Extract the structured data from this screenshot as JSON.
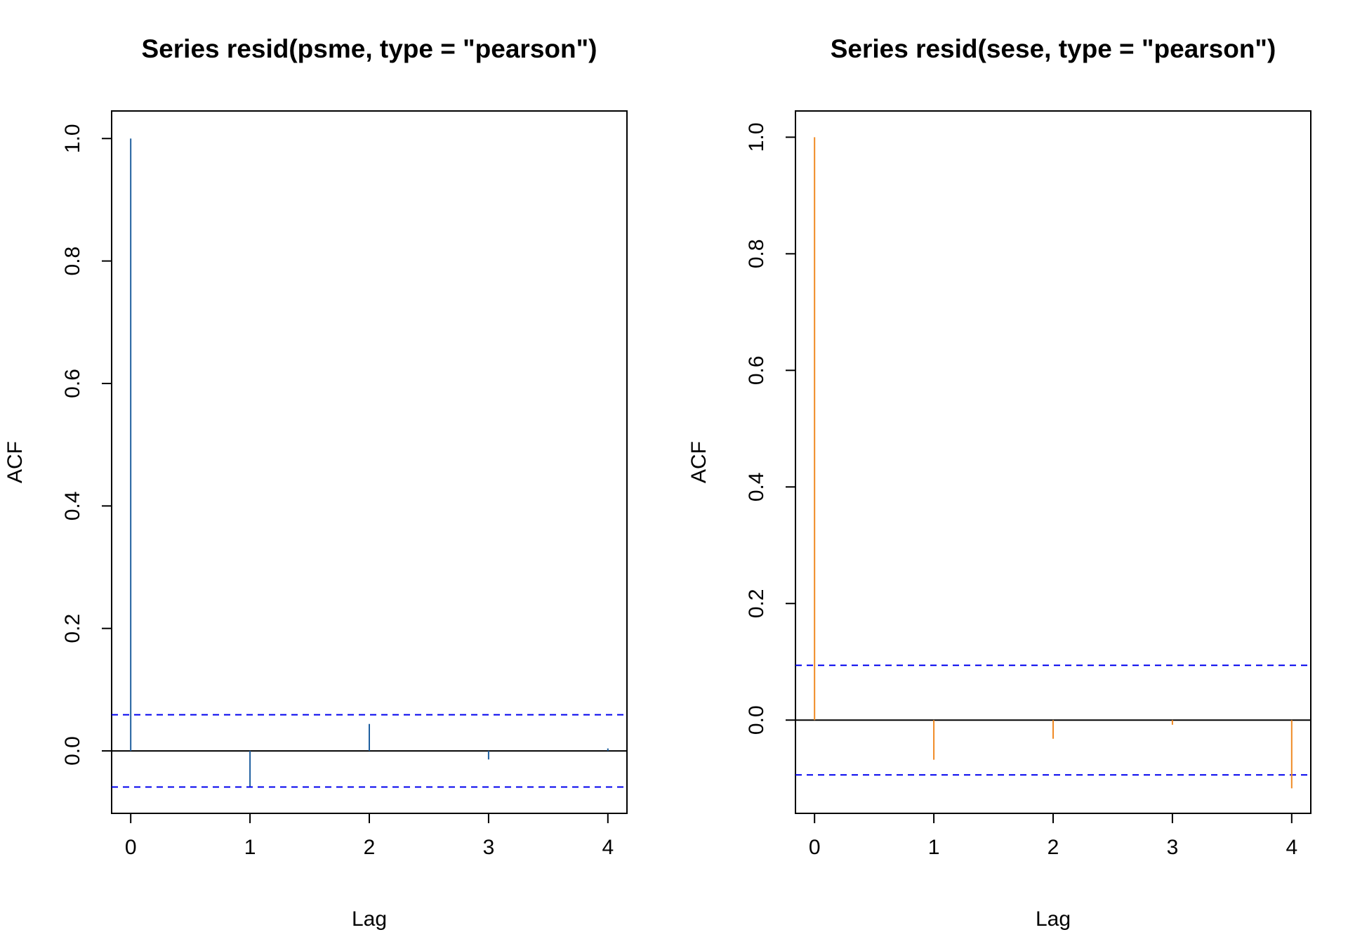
{
  "chart_data": [
    {
      "type": "bar",
      "title": "Series  resid(psme, type = \"pearson\")",
      "xlabel": "Lag",
      "ylabel": "ACF",
      "x": [
        0,
        1,
        2,
        3,
        4
      ],
      "values": [
        1.0,
        -0.058,
        0.044,
        -0.014,
        0.004
      ],
      "xlim": [
        -0.16,
        4.16
      ],
      "ylim": [
        -0.102,
        1.045
      ],
      "x_ticks": [
        "0",
        "1",
        "2",
        "3",
        "4"
      ],
      "y_ticks": [
        "0.0",
        "0.2",
        "0.4",
        "0.6",
        "0.8",
        "1.0"
      ],
      "ci": 0.059,
      "colors": {
        "bars": "#1f5f9f",
        "ci": "#0000ee",
        "zero": "#000000"
      },
      "grid": false
    },
    {
      "type": "bar",
      "title": "Series  resid(sese, type = \"pearson\")",
      "xlabel": "Lag",
      "ylabel": "ACF",
      "x": [
        0,
        1,
        2,
        3,
        4
      ],
      "values": [
        1.0,
        -0.068,
        -0.032,
        -0.008,
        -0.117
      ],
      "xlim": [
        -0.16,
        4.16
      ],
      "ylim": [
        -0.16,
        1.045
      ],
      "x_ticks": [
        "0",
        "1",
        "2",
        "3",
        "4"
      ],
      "y_ticks": [
        "0.0",
        "0.2",
        "0.4",
        "0.6",
        "0.8",
        "1.0"
      ],
      "ci": 0.094,
      "colors": {
        "bars": "#f08a24",
        "ci": "#0000ee",
        "zero": "#000000"
      },
      "grid": false
    }
  ]
}
